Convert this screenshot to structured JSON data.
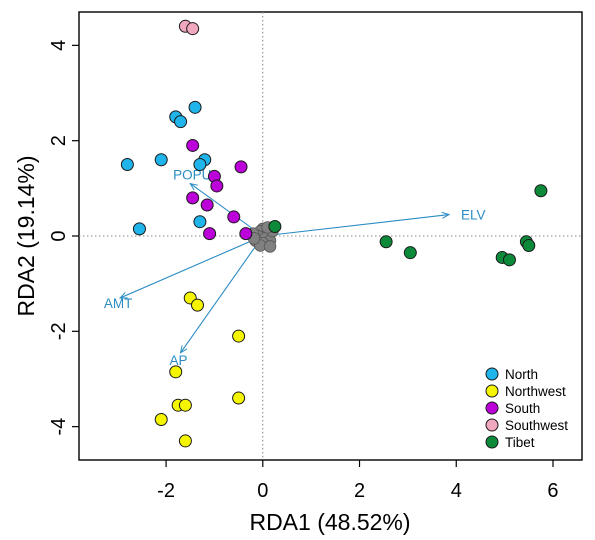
{
  "chart_data": {
    "type": "scatter",
    "xlabel": "RDA1 (48.52%)",
    "ylabel": "RDA2 (19.14%)",
    "xlim": [
      -3.8,
      6.6
    ],
    "ylim": [
      -4.7,
      4.7
    ],
    "x_ticks": [
      -2,
      0,
      2,
      4,
      6
    ],
    "y_ticks": [
      -4,
      -2,
      0,
      2,
      4
    ],
    "x_tick_labels": [
      "-2",
      "0",
      "2",
      "4",
      "6"
    ],
    "y_tick_labels": [
      "-4",
      "-2",
      "0",
      "2",
      "4"
    ],
    "grid": false,
    "reference_lines": "dotted lines at x=0 and y=0",
    "legend_position": "bottom-right",
    "series": [
      {
        "name": "North",
        "color": "#1fb5ea",
        "points": [
          [
            -1.8,
            2.5
          ],
          [
            -1.7,
            2.4
          ],
          [
            -1.4,
            2.7
          ],
          [
            -2.8,
            1.5
          ],
          [
            -2.1,
            1.6
          ],
          [
            -1.2,
            1.6
          ],
          [
            -1.3,
            1.5
          ],
          [
            -2.55,
            0.15
          ],
          [
            -1.3,
            0.3
          ]
        ]
      },
      {
        "name": "Northwest",
        "color": "#f5f500",
        "points": [
          [
            -1.5,
            -1.3
          ],
          [
            -1.35,
            -1.45
          ],
          [
            -0.5,
            -2.1
          ],
          [
            -1.8,
            -2.85
          ],
          [
            -0.5,
            -3.4
          ],
          [
            -1.75,
            -3.55
          ],
          [
            -1.6,
            -3.55
          ],
          [
            -2.1,
            -3.85
          ],
          [
            -1.6,
            -4.3
          ]
        ]
      },
      {
        "name": "South",
        "color": "#bb00d9",
        "points": [
          [
            -1.45,
            1.9
          ],
          [
            -0.45,
            1.45
          ],
          [
            -1.0,
            1.25
          ],
          [
            -0.95,
            1.05
          ],
          [
            -1.45,
            0.8
          ],
          [
            -1.15,
            0.65
          ],
          [
            -0.6,
            0.4
          ],
          [
            -1.1,
            0.05
          ],
          [
            -0.35,
            0.05
          ]
        ]
      },
      {
        "name": "Southwest",
        "color": "#f0a8bf",
        "points": [
          [
            -1.6,
            4.4
          ],
          [
            -1.45,
            4.35
          ]
        ]
      },
      {
        "name": "Tibet",
        "color": "#0c8a3a",
        "points": [
          [
            5.75,
            0.95
          ],
          [
            0.25,
            0.2
          ],
          [
            2.55,
            -0.12
          ],
          [
            3.05,
            -0.35
          ],
          [
            5.45,
            -0.12
          ],
          [
            5.5,
            -0.2
          ],
          [
            4.95,
            -0.45
          ],
          [
            5.1,
            -0.5
          ]
        ]
      }
    ],
    "gray_points": [
      [
        0.0,
        0.15
      ],
      [
        -0.05,
        0.1
      ],
      [
        0.1,
        0.05
      ],
      [
        -0.1,
        0.0
      ],
      [
        0.05,
        -0.05
      ],
      [
        0.15,
        -0.1
      ],
      [
        -0.15,
        -0.1
      ],
      [
        0.0,
        -0.15
      ],
      [
        0.2,
        0.1
      ],
      [
        -0.2,
        0.05
      ],
      [
        0.1,
        0.18
      ],
      [
        -0.05,
        -0.2
      ],
      [
        0.15,
        -0.22
      ],
      [
        -0.18,
        -0.05
      ]
    ],
    "arrows": [
      {
        "label": "ELV",
        "x": 3.85,
        "y": 0.45
      },
      {
        "label": "POPU",
        "x": -1.5,
        "y": 1.1
      },
      {
        "label": "AMT",
        "x": -2.95,
        "y": -1.3
      },
      {
        "label": "AP",
        "x": -1.7,
        "y": -2.45
      }
    ],
    "arrow_color": "#2b8cc4",
    "point_stroke": "#1a1a1a",
    "gray_point_color": "#808080"
  }
}
